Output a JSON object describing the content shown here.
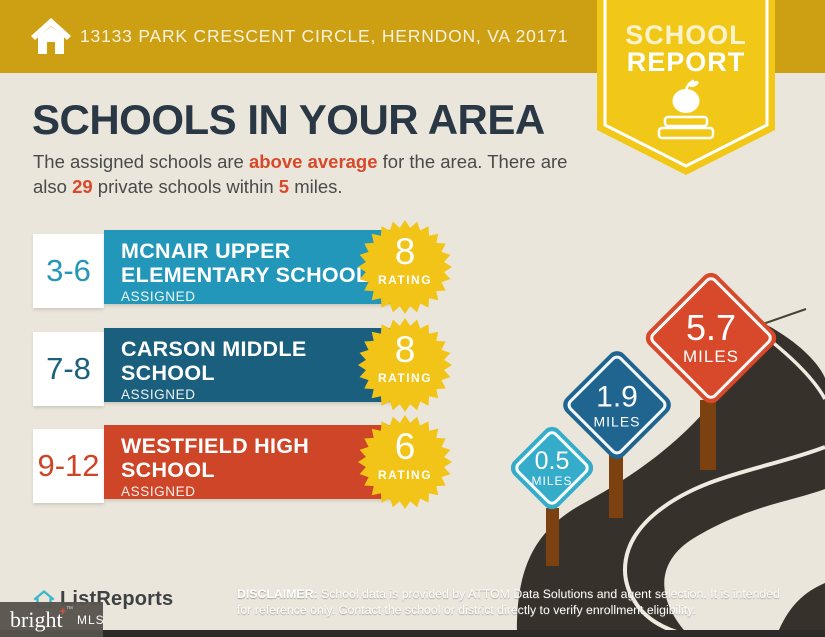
{
  "header": {
    "address": "13133 PARK CRESCENT CIRCLE, HERNDON, VA 20171",
    "badge": {
      "line1": "SCHOOL",
      "line2": "REPORT"
    }
  },
  "title": "SCHOOLS IN YOUR AREA",
  "subtitle": {
    "l1a": "The assigned schools are ",
    "l1b": "above average",
    "l1c": " for the area. There are",
    "l2a": "also ",
    "l2b": "29",
    "l2c": " private schools within ",
    "l2d": "5",
    "l2e": " miles."
  },
  "cards": [
    {
      "grades": "3-6",
      "name_line1": "MCNAIR UPPER",
      "name_line2": "ELEMENTARY SCHOOL",
      "assigned": "ASSIGNED",
      "rating": "8",
      "rating_label": "RATING",
      "bar_color": "#2397BA"
    },
    {
      "grades": "7-8",
      "name_line1": "CARSON MIDDLE",
      "name_line2": "SCHOOL",
      "assigned": "ASSIGNED",
      "rating": "8",
      "rating_label": "RATING",
      "bar_color": "#1A607E"
    },
    {
      "grades": "9-12",
      "name_line1": "WESTFIELD HIGH",
      "name_line2": "SCHOOL",
      "assigned": "ASSIGNED",
      "rating": "6",
      "rating_label": "RATING",
      "bar_color": "#CF4527"
    }
  ],
  "signs": [
    {
      "value": "0.5",
      "label": "MILES",
      "color": "#36ACCB"
    },
    {
      "value": "1.9",
      "label": "MILES",
      "color": "#1F6590"
    },
    {
      "value": "5.7",
      "label": "MILES",
      "color": "#D8492B"
    }
  ],
  "footer": {
    "brand": "ListReports",
    "mls_brand": "bright",
    "mls_mark": "+",
    "mls_tm": "TM",
    "mls_suffix": "MLS",
    "disclaimer": {
      "label": "DISCLAIMER:",
      "line1": " School data is provided by ATTOM Data Solutions and agent selection. It is intended",
      "line2": "for reference only. Contact the school or district directly to verify enrollment eligibility."
    }
  },
  "colors": {
    "header_gold": "#CDA013",
    "badge_yellow": "#F2C818",
    "star_yellow": "#F2C417",
    "background_beige": "#EAE6DB",
    "title_navy": "#2A3845",
    "accent_red": "#D7492A",
    "card_teal": "#2397BA",
    "card_blue": "#1A607E",
    "card_red": "#CF4527",
    "sign_teal": "#36ACCB",
    "sign_blue": "#1F6590",
    "sign_red": "#D8492B",
    "post_brown": "#7B4110",
    "road_charcoal": "#36312B"
  }
}
